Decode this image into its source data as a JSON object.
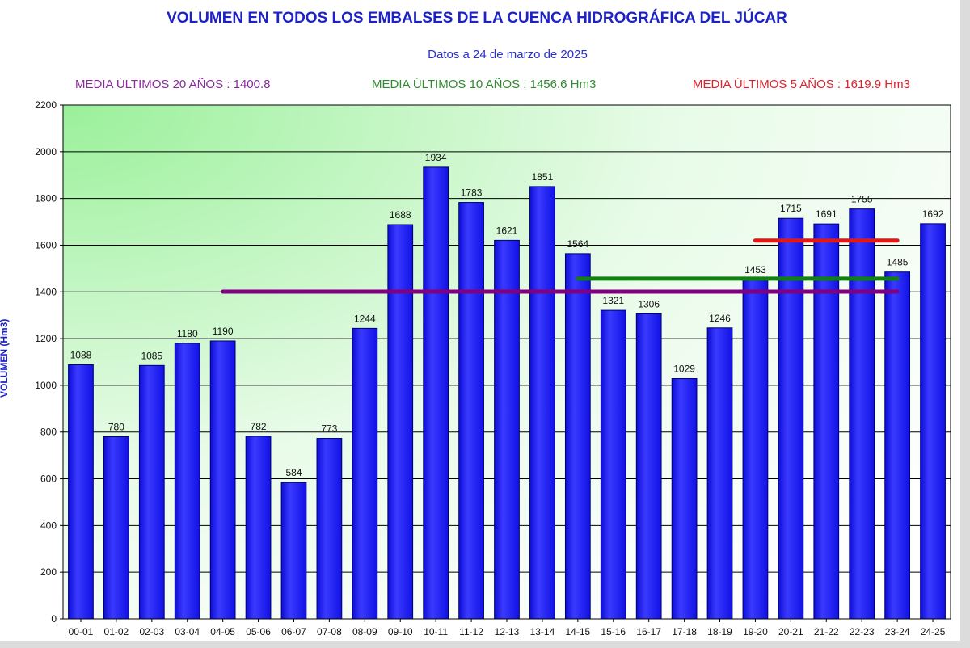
{
  "chart_data": {
    "type": "bar",
    "title": "VOLUMEN EN TODOS LOS EMBALSES DE LA CUENCA HIDROGRÁFICA DEL JÚCAR",
    "subtitle": "Datos a 24 de marzo de 2025",
    "ylabel": "VOLUMEN (Hm3)",
    "xlabel": "",
    "ylim": [
      0,
      2200
    ],
    "ytick_step": 200,
    "grid": true,
    "categories": [
      "00-01",
      "01-02",
      "02-03",
      "03-04",
      "04-05",
      "05-06",
      "06-07",
      "07-08",
      "08-09",
      "09-10",
      "10-11",
      "11-12",
      "12-13",
      "13-14",
      "14-15",
      "15-16",
      "16-17",
      "17-18",
      "18-19",
      "19-20",
      "20-21",
      "21-22",
      "22-23",
      "23-24",
      "24-25"
    ],
    "values": [
      1088,
      780,
      1085,
      1180,
      1190,
      782,
      584,
      773,
      1244,
      1688,
      1934,
      1783,
      1621,
      1851,
      1564,
      1321,
      1306,
      1029,
      1246,
      1453,
      1715,
      1691,
      1755,
      1485,
      1692
    ],
    "bar_color": "#1a1aff",
    "averages": [
      {
        "label": "MEDIA ÚLTIMOS 20 AÑOS : 1400.8",
        "value": 1400.8,
        "from": "04-05",
        "to": "23-24",
        "color": "#800080"
      },
      {
        "label": "MEDIA ÚLTIMOS 10 AÑOS : 1456.6 Hm3",
        "value": 1456.6,
        "from": "14-15",
        "to": "23-24",
        "color": "#108010"
      },
      {
        "label": "MEDIA ÚLTIMOS 5 AÑOS : 1619.9 Hm3",
        "value": 1619.9,
        "from": "19-20",
        "to": "23-24",
        "color": "#e01818"
      }
    ]
  }
}
